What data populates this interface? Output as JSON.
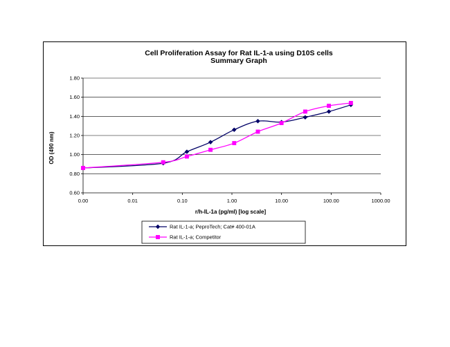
{
  "chart_data": {
    "type": "line",
    "title": "Cell Proliferation Assay for Rat IL-1-a using D10S cells",
    "subtitle": "Summary Graph",
    "xlabel": "r/h-IL-1a (pg/ml) [log scale]",
    "ylabel": "OD (490 nm)",
    "x_scale": "log",
    "x_tick_labels": [
      "0.00",
      "0.01",
      "0.10",
      "1.00",
      "10.00",
      "100.00",
      "1000.00"
    ],
    "x_tick_values": [
      0.001,
      0.01,
      0.1,
      1,
      10,
      100,
      1000
    ],
    "y_tick_labels": [
      "0.60",
      "0.80",
      "1.00",
      "1.20",
      "1.40",
      "1.60",
      "1.80"
    ],
    "ylim": [
      0.6,
      1.8
    ],
    "xlim": [
      0.001,
      1000
    ],
    "grid": "horizontal",
    "legend_position": "bottom",
    "series": [
      {
        "name": "Rat IL-1-a; PeproTech; Cat# 400-01A",
        "color": "#000066",
        "marker": "diamond",
        "x": [
          0.001,
          0.0412,
          0.1235,
          0.3704,
          1.111,
          3.333,
          10,
          30,
          90,
          250
        ],
        "y": [
          0.86,
          0.91,
          1.03,
          1.13,
          1.26,
          1.35,
          1.34,
          1.39,
          1.45,
          1.52
        ]
      },
      {
        "name": "Rat IL-1-a; Competitor",
        "color": "#FF00FF",
        "marker": "square",
        "x": [
          0.001,
          0.0412,
          0.1235,
          0.3704,
          1.111,
          3.333,
          10,
          30,
          90,
          250
        ],
        "y": [
          0.86,
          0.92,
          0.98,
          1.05,
          1.12,
          1.24,
          1.33,
          1.45,
          1.51,
          1.54
        ]
      }
    ]
  }
}
